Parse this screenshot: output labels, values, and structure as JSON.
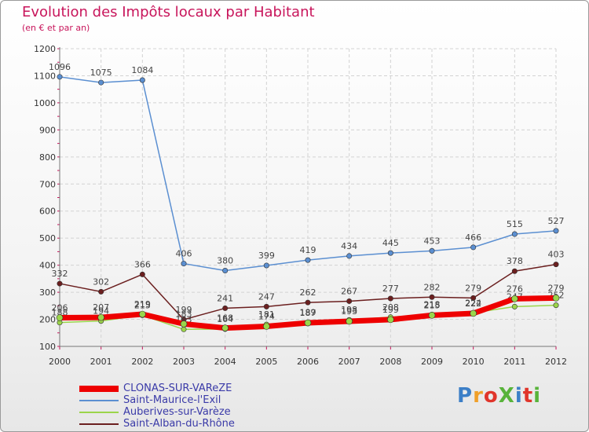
{
  "title": "Evolution des Impôts locaux par Habitant",
  "subtitle": "(en € et par an)",
  "logo": {
    "text": "ProXiti",
    "colors": [
      "#3c7fc7",
      "#f0a02a",
      "#e0352b",
      "#58b33a",
      "#3c7fc7",
      "#e0352b",
      "#58b33a"
    ]
  },
  "chart_data": {
    "type": "line",
    "categories": [
      "2000",
      "2001",
      "2002",
      "2003",
      "2004",
      "2005",
      "2006",
      "2007",
      "2008",
      "2009",
      "2010",
      "2011",
      "2012"
    ],
    "ylim": [
      100,
      1200
    ],
    "yticks": [
      100,
      200,
      300,
      400,
      500,
      600,
      700,
      800,
      900,
      1000,
      1100,
      1200
    ],
    "grid": true,
    "series": [
      {
        "name": "Saint-Maurice-l'Exil",
        "color": "#5b8fd1",
        "values": [
          1096,
          1075,
          1084,
          406,
          380,
          399,
          419,
          434,
          445,
          453,
          466,
          515,
          527
        ]
      },
      {
        "name": "Saint-Alban-du-Rhône",
        "color": "#6b1f1f",
        "values": [
          332,
          302,
          366,
          199,
          241,
          247,
          262,
          267,
          277,
          282,
          279,
          378,
          403
        ]
      },
      {
        "name": "Auberives-sur-Varèze",
        "color": "#9bd54a",
        "values": [
          188,
          194,
          215,
          163,
          164,
          181,
          189,
          198,
          208,
          218,
          224,
          247,
          252
        ]
      },
      {
        "name": "CLONAS-SUR-VAReZE",
        "color": "#ee0000",
        "values": [
          206,
          207,
          219,
          183,
          168,
          174,
          187,
          193,
          199,
          215,
          222,
          276,
          279
        ]
      }
    ],
    "legend": [
      {
        "name": "CLONAS-SUR-VAReZE",
        "color": "#ee0000"
      },
      {
        "name": "Saint-Maurice-l'Exil",
        "color": "#5b8fd1"
      },
      {
        "name": "Auberives-sur-Varèze",
        "color": "#9bd54a"
      },
      {
        "name": "Saint-Alban-du-Rhône",
        "color": "#6b1f1f"
      }
    ]
  }
}
